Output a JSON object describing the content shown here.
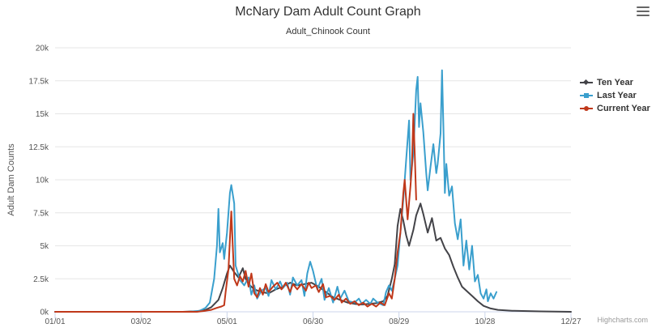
{
  "title": "McNary Dam Adult Count Graph",
  "subtitle": "Adult_Chinook Count",
  "credit": "Highcharts.com",
  "menu_icon": "hamburger-menu-icon",
  "chart_data": {
    "type": "line",
    "title": "McNary Dam Adult Count Graph",
    "subtitle": "Adult_Chinook Count",
    "xlabel": "",
    "ylabel": "Adult Dam Counts",
    "x_unit": "day of year",
    "x_ticks": [
      "01/01",
      "03/02",
      "05/01",
      "06/30",
      "08/29",
      "10/28",
      "12/27"
    ],
    "x_tick_days": [
      1,
      61,
      121,
      181,
      241,
      301,
      361
    ],
    "xlim": [
      1,
      361
    ],
    "y_ticks": [
      "0k",
      "2.5k",
      "5k",
      "7.5k",
      "10k",
      "12.5k",
      "15k",
      "17.5k",
      "20k"
    ],
    "ylim": [
      0,
      20000
    ],
    "grid": true,
    "legend_position": "right",
    "series": [
      {
        "name": "Ten Year",
        "color": "#434348",
        "marker": "diamond",
        "points": [
          [
            1,
            0
          ],
          [
            90,
            0
          ],
          [
            100,
            50
          ],
          [
            106,
            150
          ],
          [
            110,
            350
          ],
          [
            115,
            900
          ],
          [
            118,
            1800
          ],
          [
            121,
            2900
          ],
          [
            123,
            3500
          ],
          [
            126,
            3000
          ],
          [
            129,
            2600
          ],
          [
            132,
            3300
          ],
          [
            134,
            2500
          ],
          [
            137,
            2000
          ],
          [
            140,
            1700
          ],
          [
            145,
            1500
          ],
          [
            150,
            1400
          ],
          [
            155,
            1700
          ],
          [
            160,
            1900
          ],
          [
            165,
            2200
          ],
          [
            170,
            2000
          ],
          [
            175,
            2100
          ],
          [
            180,
            2200
          ],
          [
            185,
            1900
          ],
          [
            190,
            1500
          ],
          [
            195,
            1100
          ],
          [
            200,
            900
          ],
          [
            205,
            700
          ],
          [
            210,
            600
          ],
          [
            215,
            550
          ],
          [
            220,
            600
          ],
          [
            225,
            650
          ],
          [
            230,
            800
          ],
          [
            233,
            1200
          ],
          [
            236,
            2500
          ],
          [
            238,
            3600
          ],
          [
            240,
            6500
          ],
          [
            242,
            7800
          ],
          [
            244,
            6900
          ],
          [
            246,
            5800
          ],
          [
            248,
            5000
          ],
          [
            251,
            6200
          ],
          [
            253,
            7300
          ],
          [
            256,
            8200
          ],
          [
            258,
            7400
          ],
          [
            261,
            6000
          ],
          [
            264,
            7100
          ],
          [
            267,
            5400
          ],
          [
            270,
            5600
          ],
          [
            273,
            4800
          ],
          [
            276,
            4300
          ],
          [
            279,
            3400
          ],
          [
            282,
            2600
          ],
          [
            285,
            1900
          ],
          [
            288,
            1600
          ],
          [
            292,
            1200
          ],
          [
            296,
            800
          ],
          [
            300,
            450
          ],
          [
            305,
            250
          ],
          [
            310,
            150
          ],
          [
            320,
            80
          ],
          [
            340,
            30
          ],
          [
            361,
            0
          ]
        ]
      },
      {
        "name": "Last Year",
        "color": "#3a9fcd",
        "marker": "square",
        "points": [
          [
            1,
            0
          ],
          [
            95,
            0
          ],
          [
            102,
            80
          ],
          [
            106,
            300
          ],
          [
            109,
            700
          ],
          [
            112,
            2500
          ],
          [
            114,
            5000
          ],
          [
            115,
            7800
          ],
          [
            116,
            4500
          ],
          [
            118,
            5200
          ],
          [
            119,
            4000
          ],
          [
            121,
            6000
          ],
          [
            123,
            9000
          ],
          [
            124,
            9600
          ],
          [
            126,
            8200
          ],
          [
            127,
            3500
          ],
          [
            130,
            2400
          ],
          [
            133,
            2000
          ],
          [
            136,
            2600
          ],
          [
            138,
            1300
          ],
          [
            140,
            2000
          ],
          [
            142,
            1000
          ],
          [
            145,
            1600
          ],
          [
            148,
            1800
          ],
          [
            150,
            1200
          ],
          [
            152,
            2400
          ],
          [
            155,
            1700
          ],
          [
            158,
            2300
          ],
          [
            160,
            1800
          ],
          [
            163,
            2200
          ],
          [
            165,
            1300
          ],
          [
            167,
            2600
          ],
          [
            170,
            2000
          ],
          [
            173,
            2400
          ],
          [
            175,
            1200
          ],
          [
            177,
            2900
          ],
          [
            179,
            3800
          ],
          [
            181,
            3100
          ],
          [
            184,
            1700
          ],
          [
            187,
            2500
          ],
          [
            189,
            900
          ],
          [
            192,
            1800
          ],
          [
            195,
            700
          ],
          [
            198,
            1900
          ],
          [
            200,
            1000
          ],
          [
            203,
            1600
          ],
          [
            206,
            800
          ],
          [
            210,
            700
          ],
          [
            213,
            1000
          ],
          [
            215,
            600
          ],
          [
            218,
            900
          ],
          [
            221,
            600
          ],
          [
            223,
            1000
          ],
          [
            226,
            700
          ],
          [
            230,
            500
          ],
          [
            232,
            1500
          ],
          [
            234,
            2000
          ],
          [
            236,
            1600
          ],
          [
            238,
            2500
          ],
          [
            240,
            3500
          ],
          [
            242,
            6000
          ],
          [
            244,
            8500
          ],
          [
            246,
            11500
          ],
          [
            248,
            14500
          ],
          [
            249,
            10000
          ],
          [
            251,
            12000
          ],
          [
            253,
            16800
          ],
          [
            254,
            17800
          ],
          [
            255,
            14000
          ],
          [
            256,
            15800
          ],
          [
            258,
            13600
          ],
          [
            260,
            10500
          ],
          [
            261,
            9200
          ],
          [
            263,
            11000
          ],
          [
            265,
            12700
          ],
          [
            267,
            10500
          ],
          [
            268,
            11200
          ],
          [
            270,
            13500
          ],
          [
            271,
            18300
          ],
          [
            272,
            14000
          ],
          [
            273,
            9000
          ],
          [
            274,
            11200
          ],
          [
            276,
            8800
          ],
          [
            278,
            9500
          ],
          [
            280,
            6700
          ],
          [
            282,
            5500
          ],
          [
            284,
            7000
          ],
          [
            286,
            3500
          ],
          [
            288,
            5400
          ],
          [
            290,
            3200
          ],
          [
            292,
            5000
          ],
          [
            294,
            2300
          ],
          [
            296,
            2800
          ],
          [
            298,
            1400
          ],
          [
            300,
            1000
          ],
          [
            302,
            1700
          ],
          [
            303,
            800
          ],
          [
            305,
            1400
          ],
          [
            307,
            1000
          ],
          [
            309,
            1500
          ]
        ]
      },
      {
        "name": "Current Year",
        "color": "#c0381a",
        "marker": "circle",
        "points": [
          [
            1,
            0
          ],
          [
            100,
            0
          ],
          [
            106,
            80
          ],
          [
            110,
            150
          ],
          [
            114,
            300
          ],
          [
            117,
            400
          ],
          [
            119,
            500
          ],
          [
            120,
            1500
          ],
          [
            122,
            3200
          ],
          [
            123,
            5500
          ],
          [
            124,
            7600
          ],
          [
            125,
            5000
          ],
          [
            126,
            2500
          ],
          [
            128,
            2000
          ],
          [
            130,
            2700
          ],
          [
            132,
            2300
          ],
          [
            134,
            3100
          ],
          [
            136,
            1900
          ],
          [
            138,
            2900
          ],
          [
            140,
            1400
          ],
          [
            142,
            1100
          ],
          [
            144,
            1800
          ],
          [
            146,
            1300
          ],
          [
            148,
            2100
          ],
          [
            150,
            1500
          ],
          [
            153,
            1900
          ],
          [
            156,
            2200
          ],
          [
            159,
            1700
          ],
          [
            162,
            2200
          ],
          [
            165,
            1500
          ],
          [
            167,
            2100
          ],
          [
            170,
            1700
          ],
          [
            173,
            2100
          ],
          [
            176,
            1600
          ],
          [
            178,
            2200
          ],
          [
            180,
            1800
          ],
          [
            183,
            2000
          ],
          [
            185,
            1500
          ],
          [
            188,
            2100
          ],
          [
            190,
            1100
          ],
          [
            193,
            1200
          ],
          [
            196,
            900
          ],
          [
            199,
            1300
          ],
          [
            201,
            700
          ],
          [
            204,
            1000
          ],
          [
            207,
            600
          ],
          [
            210,
            800
          ],
          [
            213,
            500
          ],
          [
            216,
            700
          ],
          [
            219,
            400
          ],
          [
            222,
            600
          ],
          [
            225,
            400
          ],
          [
            228,
            700
          ],
          [
            231,
            500
          ],
          [
            234,
            1400
          ],
          [
            236,
            1000
          ],
          [
            238,
            2500
          ],
          [
            240,
            4500
          ],
          [
            242,
            6000
          ],
          [
            244,
            9000
          ],
          [
            245,
            10000
          ],
          [
            247,
            7000
          ],
          [
            249,
            9500
          ],
          [
            250,
            11000
          ],
          [
            251,
            15000
          ],
          [
            252,
            12000
          ],
          [
            253,
            8500
          ]
        ]
      }
    ]
  }
}
